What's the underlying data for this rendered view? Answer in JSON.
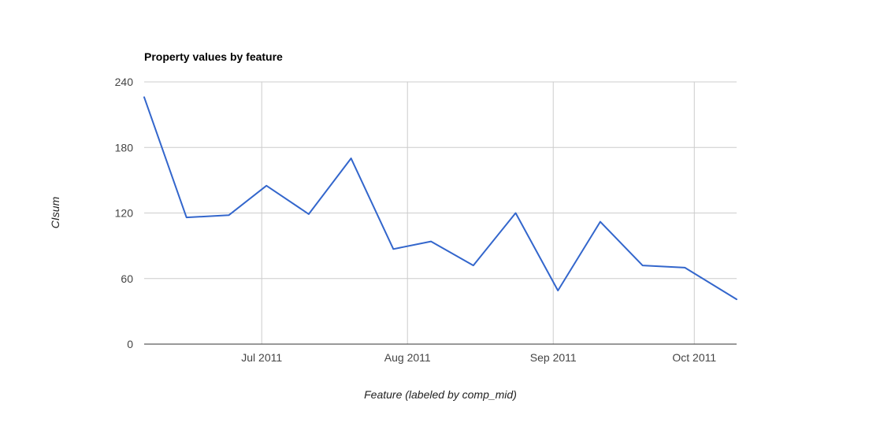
{
  "chart_data": {
    "type": "line",
    "title": "Property values by feature",
    "xlabel": "Feature (labeled by comp_mid)",
    "ylabel": "CIsum",
    "ylim": [
      0,
      240
    ],
    "yticks": [
      0,
      60,
      120,
      180,
      240
    ],
    "xlim": [
      "2011-06-06",
      "2011-10-10"
    ],
    "xticks": [
      {
        "date": "2011-07-01",
        "label": "Jul 2011"
      },
      {
        "date": "2011-08-01",
        "label": "Aug 2011"
      },
      {
        "date": "2011-09-01",
        "label": "Sep 2011"
      },
      {
        "date": "2011-10-01",
        "label": "Oct 2011"
      }
    ],
    "grid": true,
    "legend": "none",
    "series": [
      {
        "color": "#3366cc",
        "points": [
          {
            "x": "2011-06-06",
            "y": 226
          },
          {
            "x": "2011-06-15",
            "y": 116
          },
          {
            "x": "2011-06-24",
            "y": 118
          },
          {
            "x": "2011-07-02",
            "y": 145
          },
          {
            "x": "2011-07-11",
            "y": 119
          },
          {
            "x": "2011-07-20",
            "y": 170
          },
          {
            "x": "2011-07-29",
            "y": 87
          },
          {
            "x": "2011-08-06",
            "y": 94
          },
          {
            "x": "2011-08-15",
            "y": 72
          },
          {
            "x": "2011-08-24",
            "y": 120
          },
          {
            "x": "2011-09-02",
            "y": 49
          },
          {
            "x": "2011-09-11",
            "y": 112
          },
          {
            "x": "2011-09-20",
            "y": 72
          },
          {
            "x": "2011-09-29",
            "y": 70
          },
          {
            "x": "2011-10-10",
            "y": 41
          }
        ]
      }
    ]
  }
}
